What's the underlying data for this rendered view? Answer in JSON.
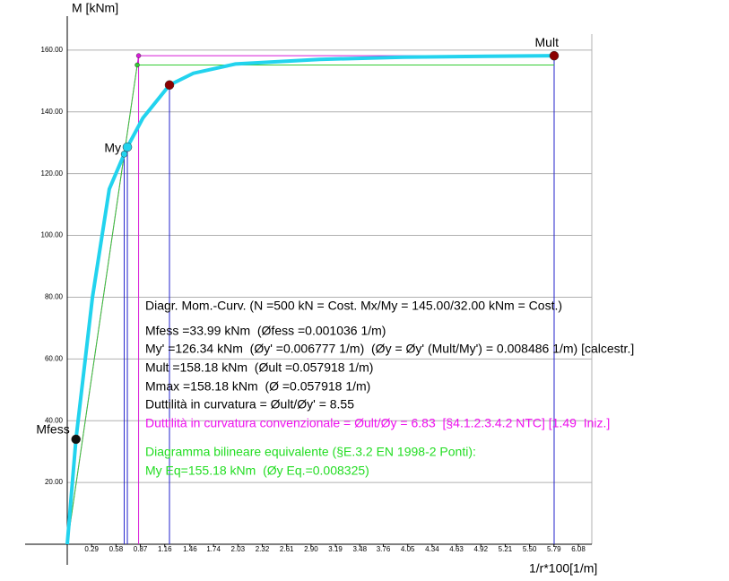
{
  "chart_data": {
    "type": "line",
    "y_label": "M [kNm]",
    "x_label": "1/r*100[1/m]",
    "xlim": [
      0,
      6.24
    ],
    "ylim": [
      0,
      171
    ],
    "xticks": [
      0.29,
      0.58,
      0.87,
      1.16,
      1.46,
      1.74,
      2.03,
      2.32,
      2.61,
      {
        "value": 2.9,
        "label": "2.90"
      },
      3.19,
      3.48,
      3.76,
      4.05,
      4.34,
      4.63,
      4.92,
      5.21,
      {
        "value": 5.5,
        "label": "5.50"
      },
      5.79,
      6.08
    ],
    "yticks": [
      {
        "value": 20,
        "label": "20.00"
      },
      {
        "value": 40,
        "label": "40.00"
      },
      {
        "value": 60,
        "label": "60.00"
      },
      {
        "value": 80,
        "label": "80.00"
      },
      {
        "value": 100,
        "label": "100.00"
      },
      {
        "value": 120,
        "label": "120.00"
      },
      {
        "value": 140,
        "label": "140.00"
      },
      {
        "value": 160,
        "label": "160.00"
      }
    ],
    "grid": true,
    "series": [
      {
        "color": "#d81bd8",
        "x": [
          0,
          0.8486,
          5.7918
        ],
        "values": [
          0,
          158.18,
          158.18
        ]
      },
      {
        "color": "#33cc33",
        "x": [
          0,
          0.8325,
          5.7918
        ],
        "values": [
          0,
          155.18,
          155.18
        ]
      },
      {
        "color": "#22d3ee",
        "x": [
          0,
          0.1036,
          0.3,
          0.5,
          0.6777,
          0.715,
          0.9,
          1.216,
          1.5,
          2.0,
          3.0,
          4.0,
          5.0,
          5.7918
        ],
        "values": [
          0,
          33.99,
          80,
          115,
          126.34,
          128.6,
          138,
          148.7,
          152.5,
          155.5,
          157,
          157.7,
          158,
          158.18
        ]
      }
    ],
    "points": [
      {
        "label": "Mfess",
        "x": 0.1036,
        "value": 33.99,
        "color": "#111111"
      },
      {
        "x": 0.6777,
        "value": 126.34,
        "color": "#22d3ee"
      },
      {
        "label": "My",
        "x": 0.715,
        "value": 128.6,
        "color": "#22d3ee"
      },
      {
        "x": 1.216,
        "value": 148.7,
        "color": "#8b0000"
      },
      {
        "label": "Mult",
        "x": 5.7918,
        "value": 158.18,
        "color": "#8b0000"
      },
      {
        "x": 0.8486,
        "value": 158.18,
        "color": "#d81bd8"
      },
      {
        "x": 0.8325,
        "value": 155.18,
        "color": "#33cc33"
      }
    ],
    "annotations": [
      {
        "text": "Diagr. Mom.-Curv. (N =500 kN = Cost. Mx/My = 145.00/32.00 kNm = Cost.)",
        "color": "#000000"
      },
      {
        "text": "Mfess =33.99 kNm  (Øfess =0.001036 1/m)",
        "color": "#000000"
      },
      {
        "text": "My' =126.34 kNm  (Øy' =0.006777 1/m)  (Øy = Øy' (Mult/My') = 0.008486 1/m) [calcestr.]",
        "color": "#000000"
      },
      {
        "text": "Mult =158.18 kNm  (Øult =0.057918 1/m)",
        "color": "#000000"
      },
      {
        "text": "Mmax =158.18 kNm  (Ø =0.057918 1/m)",
        "color": "#000000"
      },
      {
        "text": "Duttilità in curvatura = Øult/Øy' = 8.55",
        "color": "#000000"
      },
      {
        "text": "Duttilità in curvatura convenzionale = Øult/Øy = 6.83  [§4.1.2.3.4.2 NTC] [1.49  Iniz.]",
        "color": "#ee11ee"
      },
      {
        "text": "Diagramma bilineare equivalente (§E.3.2 EN 1998-2 Ponti):",
        "color": "#22dd22"
      },
      {
        "text": "My Eq=155.18 kNm  (Øy Eq.=0.008325)",
        "color": "#22dd22"
      }
    ]
  }
}
